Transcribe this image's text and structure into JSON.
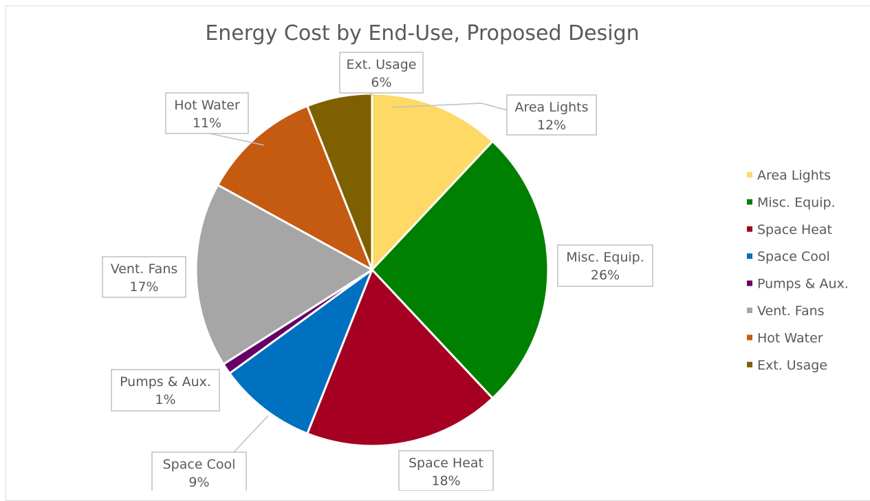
{
  "chart_data": {
    "type": "pie",
    "title": "Energy Cost by End-Use, Proposed Design",
    "categories": [
      "Area Lights",
      "Misc. Equip.",
      "Space Heat",
      "Space Cool",
      "Pumps & Aux.",
      "Vent. Fans",
      "Hot Water",
      "Ext. Usage"
    ],
    "values": [
      12,
      26,
      18,
      9,
      1,
      17,
      11,
      6
    ],
    "value_labels": [
      "12%",
      "26%",
      "18%",
      "9%",
      "1%",
      "17%",
      "11%",
      "6%"
    ],
    "colors": [
      "#FFD966",
      "#008000",
      "#A50021",
      "#0070C0",
      "#660066",
      "#A6A6A6",
      "#C55A11",
      "#7F6000"
    ],
    "legend_position": "right",
    "start_angle": "12 o'clock",
    "direction": "clockwise"
  }
}
